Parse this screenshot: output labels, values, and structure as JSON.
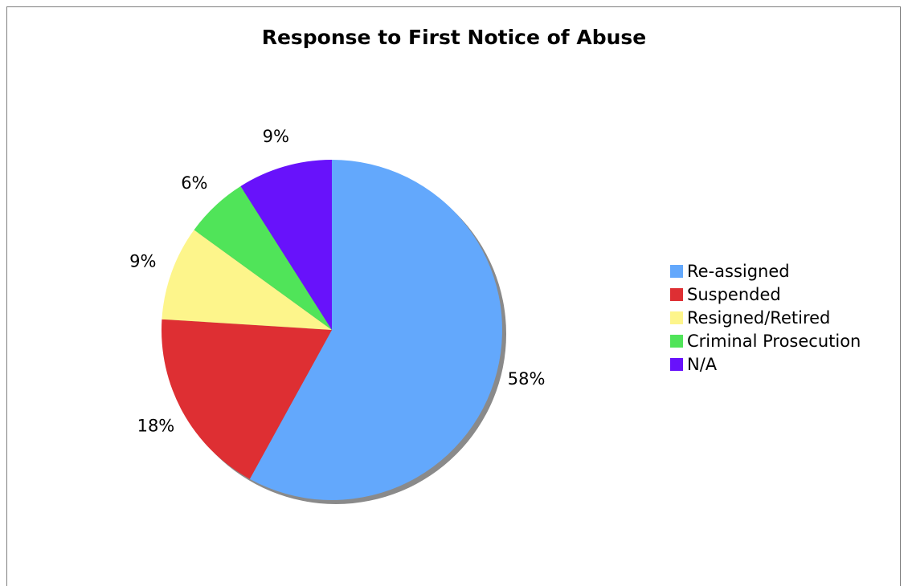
{
  "chart_data": {
    "type": "pie",
    "title": "Response to First Notice of Abuse",
    "categories": [
      "Re-assigned",
      "Suspended",
      "Resigned/Retired",
      "Criminal Prosecution",
      "N/A"
    ],
    "values": [
      58,
      18,
      9,
      6,
      9
    ],
    "labels": [
      "58%",
      "18%",
      "9%",
      "6%",
      "9%"
    ],
    "colors": [
      "#63a8fc",
      "#de2f33",
      "#fdf58b",
      "#50e459",
      "#6812fb"
    ],
    "legend_position": "right",
    "start_angle": "top, clockwise"
  }
}
